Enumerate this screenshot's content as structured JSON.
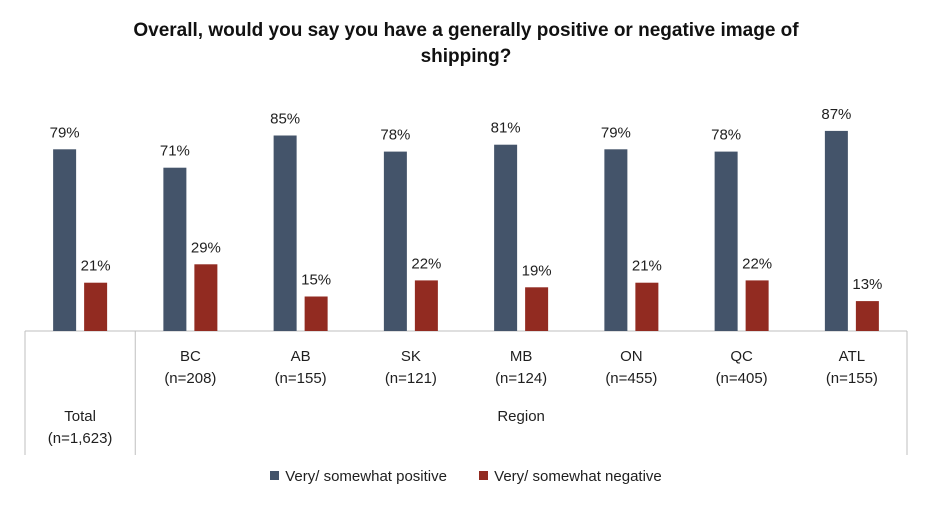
{
  "chart_data": {
    "type": "bar",
    "title_lines": [
      "Overall, would you say you have a generally positive or negative image of",
      "shipping?"
    ],
    "categories": [
      {
        "name": "Total",
        "n": "(n=1,623)"
      },
      {
        "name": "BC",
        "n": "(n=208)"
      },
      {
        "name": "AB",
        "n": "(n=155)"
      },
      {
        "name": "SK",
        "n": "(n=121)"
      },
      {
        "name": "MB",
        "n": "(n=124)"
      },
      {
        "name": "ON",
        "n": "(n=455)"
      },
      {
        "name": "QC",
        "n": "(n=405)"
      },
      {
        "name": "ATL",
        "n": "(n=155)"
      }
    ],
    "group_label": "Region",
    "series": [
      {
        "name": "Very/ somewhat positive",
        "color": "#44546a",
        "values": [
          79,
          71,
          85,
          78,
          81,
          79,
          78,
          87
        ]
      },
      {
        "name": "Very/ somewhat negative",
        "color": "#922b21",
        "values": [
          21,
          29,
          15,
          22,
          19,
          21,
          22,
          13
        ]
      }
    ],
    "value_suffix": "%",
    "ylim": [
      0,
      100
    ],
    "grid": false,
    "legend_position": "bottom"
  }
}
